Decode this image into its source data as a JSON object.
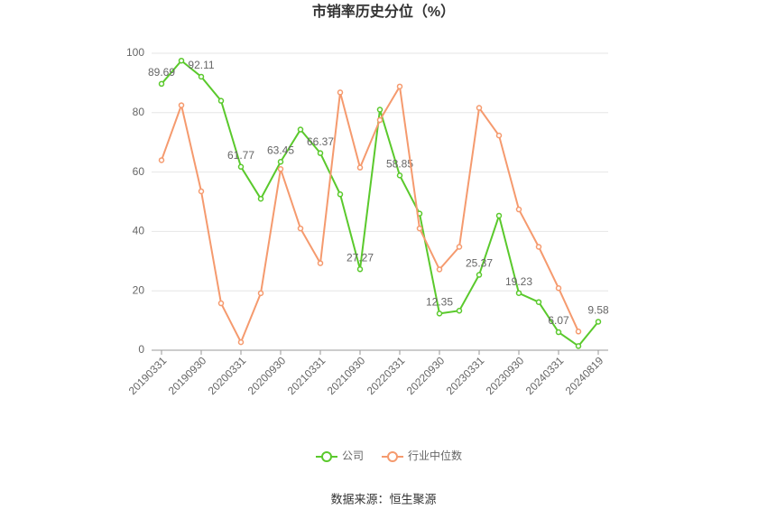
{
  "chart_data": {
    "type": "line",
    "title": "市销率历史分位（%）",
    "source": "数据来源：恒生聚源",
    "categories": [
      "20190331",
      null,
      "20190930",
      null,
      "20200331",
      null,
      "20200930",
      null,
      "20210331",
      null,
      "20210930",
      null,
      "20220331",
      null,
      "20220930",
      null,
      "20230331",
      null,
      "20230930",
      null,
      "20240331",
      null,
      "20240819"
    ],
    "series": [
      {
        "name": "公司",
        "color": "#5ac92c",
        "values": [
          89.69,
          97.5,
          92.11,
          84,
          61.77,
          51,
          63.45,
          74.3,
          66.37,
          52.5,
          27.27,
          81,
          58.85,
          46,
          12.35,
          13.3,
          25.37,
          45.3,
          19.23,
          16.2,
          6.07,
          1.4,
          9.58
        ],
        "value_labels": [
          "89.69",
          null,
          "92.11",
          null,
          "61.77",
          null,
          "63.45",
          null,
          "66.37",
          null,
          "27.27",
          null,
          "58.85",
          null,
          "12.35",
          null,
          "25.37",
          null,
          "19.23",
          null,
          "6.07",
          null,
          "9.58"
        ]
      },
      {
        "name": "行业中位数",
        "color": "#f59a6e",
        "values": [
          64,
          82.5,
          53.5,
          15.8,
          2.7,
          19.2,
          61,
          41,
          29.3,
          86.8,
          61.5,
          77.5,
          88.8,
          41,
          27.2,
          34.8,
          81.6,
          72.3,
          47.4,
          34.8,
          20.9,
          6.3,
          null
        ]
      }
    ],
    "ylim": [
      0,
      100
    ],
    "yticks": [
      0,
      20,
      40,
      60,
      80,
      100
    ],
    "grid": true
  }
}
